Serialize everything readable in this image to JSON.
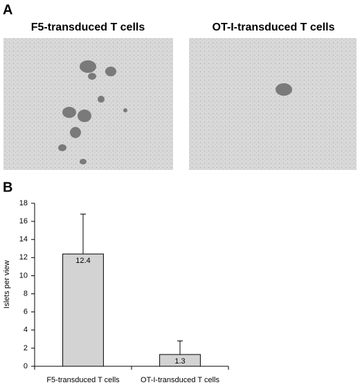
{
  "panel_a": {
    "label": "A",
    "images": [
      {
        "title": "F5-transduced T cells"
      },
      {
        "title": "OT-I-transduced T cells"
      }
    ]
  },
  "panel_b": {
    "label": "B"
  },
  "chart_data": {
    "type": "bar",
    "y_label": "Islets per view",
    "categories": [
      "F5-transduced T cells",
      "OT-I-transduced T cells"
    ],
    "values": [
      12.4,
      1.3
    ],
    "errors": [
      4.4,
      1.5
    ],
    "color": "#d3d3d3",
    "ylim": [
      0,
      18
    ],
    "yticks": [
      0,
      2,
      4,
      6,
      8,
      10,
      12,
      14,
      16,
      18
    ],
    "grid": false
  }
}
